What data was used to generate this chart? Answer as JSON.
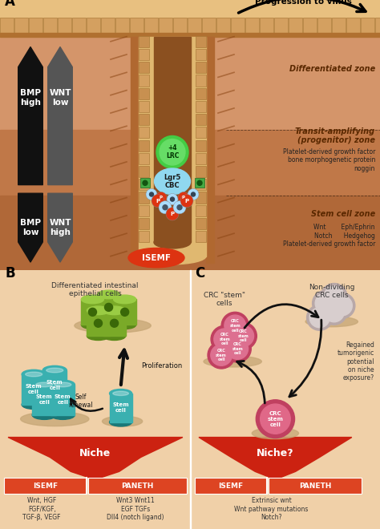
{
  "bg_color": "#f0d0a8",
  "panel_a": {
    "differentiated_zone_label": "Differentiated zone",
    "transit_zone_label": "Transit-amplifying\n(progenitor) zone",
    "stem_zone_label": "Stem cell zone",
    "progression_label": "Progression to villus",
    "bmp_high": "BMP\nhigh",
    "bmp_low": "BMP\nlow",
    "wnt_low": "WNT\nlow",
    "wnt_high": "WNT\nhigh",
    "isemf_label": "ISEMF",
    "lrc_label": "+4\nLRC",
    "lgr5_label": "Lgr5\nCBC",
    "transit_zone_factors": "Platelet-derived growth factor\nbone morphogenetic protein\nnoggin",
    "stem_zone_factors": "Wnt        Eph/Ephrin\nNotch      Hedgehog\nPlatelet-derived growth factor"
  },
  "panel_b": {
    "diff_cells_label": "Differentiated intestinal\nepithelial cells",
    "proliferation_label": "Proliferation",
    "self_renewal_label": "Self\nrenewal",
    "niche_label": "Niche",
    "isemf_label": "ISEMF",
    "paneth_label": "PANETH",
    "isemf_factors": "Wnt, HGF\nFGF/KGF,\nTGF-β, VEGF",
    "paneth_factors": "Wnt3 Wnt11\nEGF TGFs\nDll4 (notch ligand)"
  },
  "panel_c": {
    "crc_stem_label": "CRC \"stem\"\ncells",
    "non_dividing_label": "Non-dividing\nCRC cells",
    "regained_label": "Regained\ntumorigenic\npotential\non niche\nexposure?",
    "niche_label": "Niche?",
    "isemf_label": "ISEMF",
    "paneth_label": "PANETH",
    "c_factors": "Extrinsic wnt\nWnt pathway mutations\nNotch?"
  }
}
